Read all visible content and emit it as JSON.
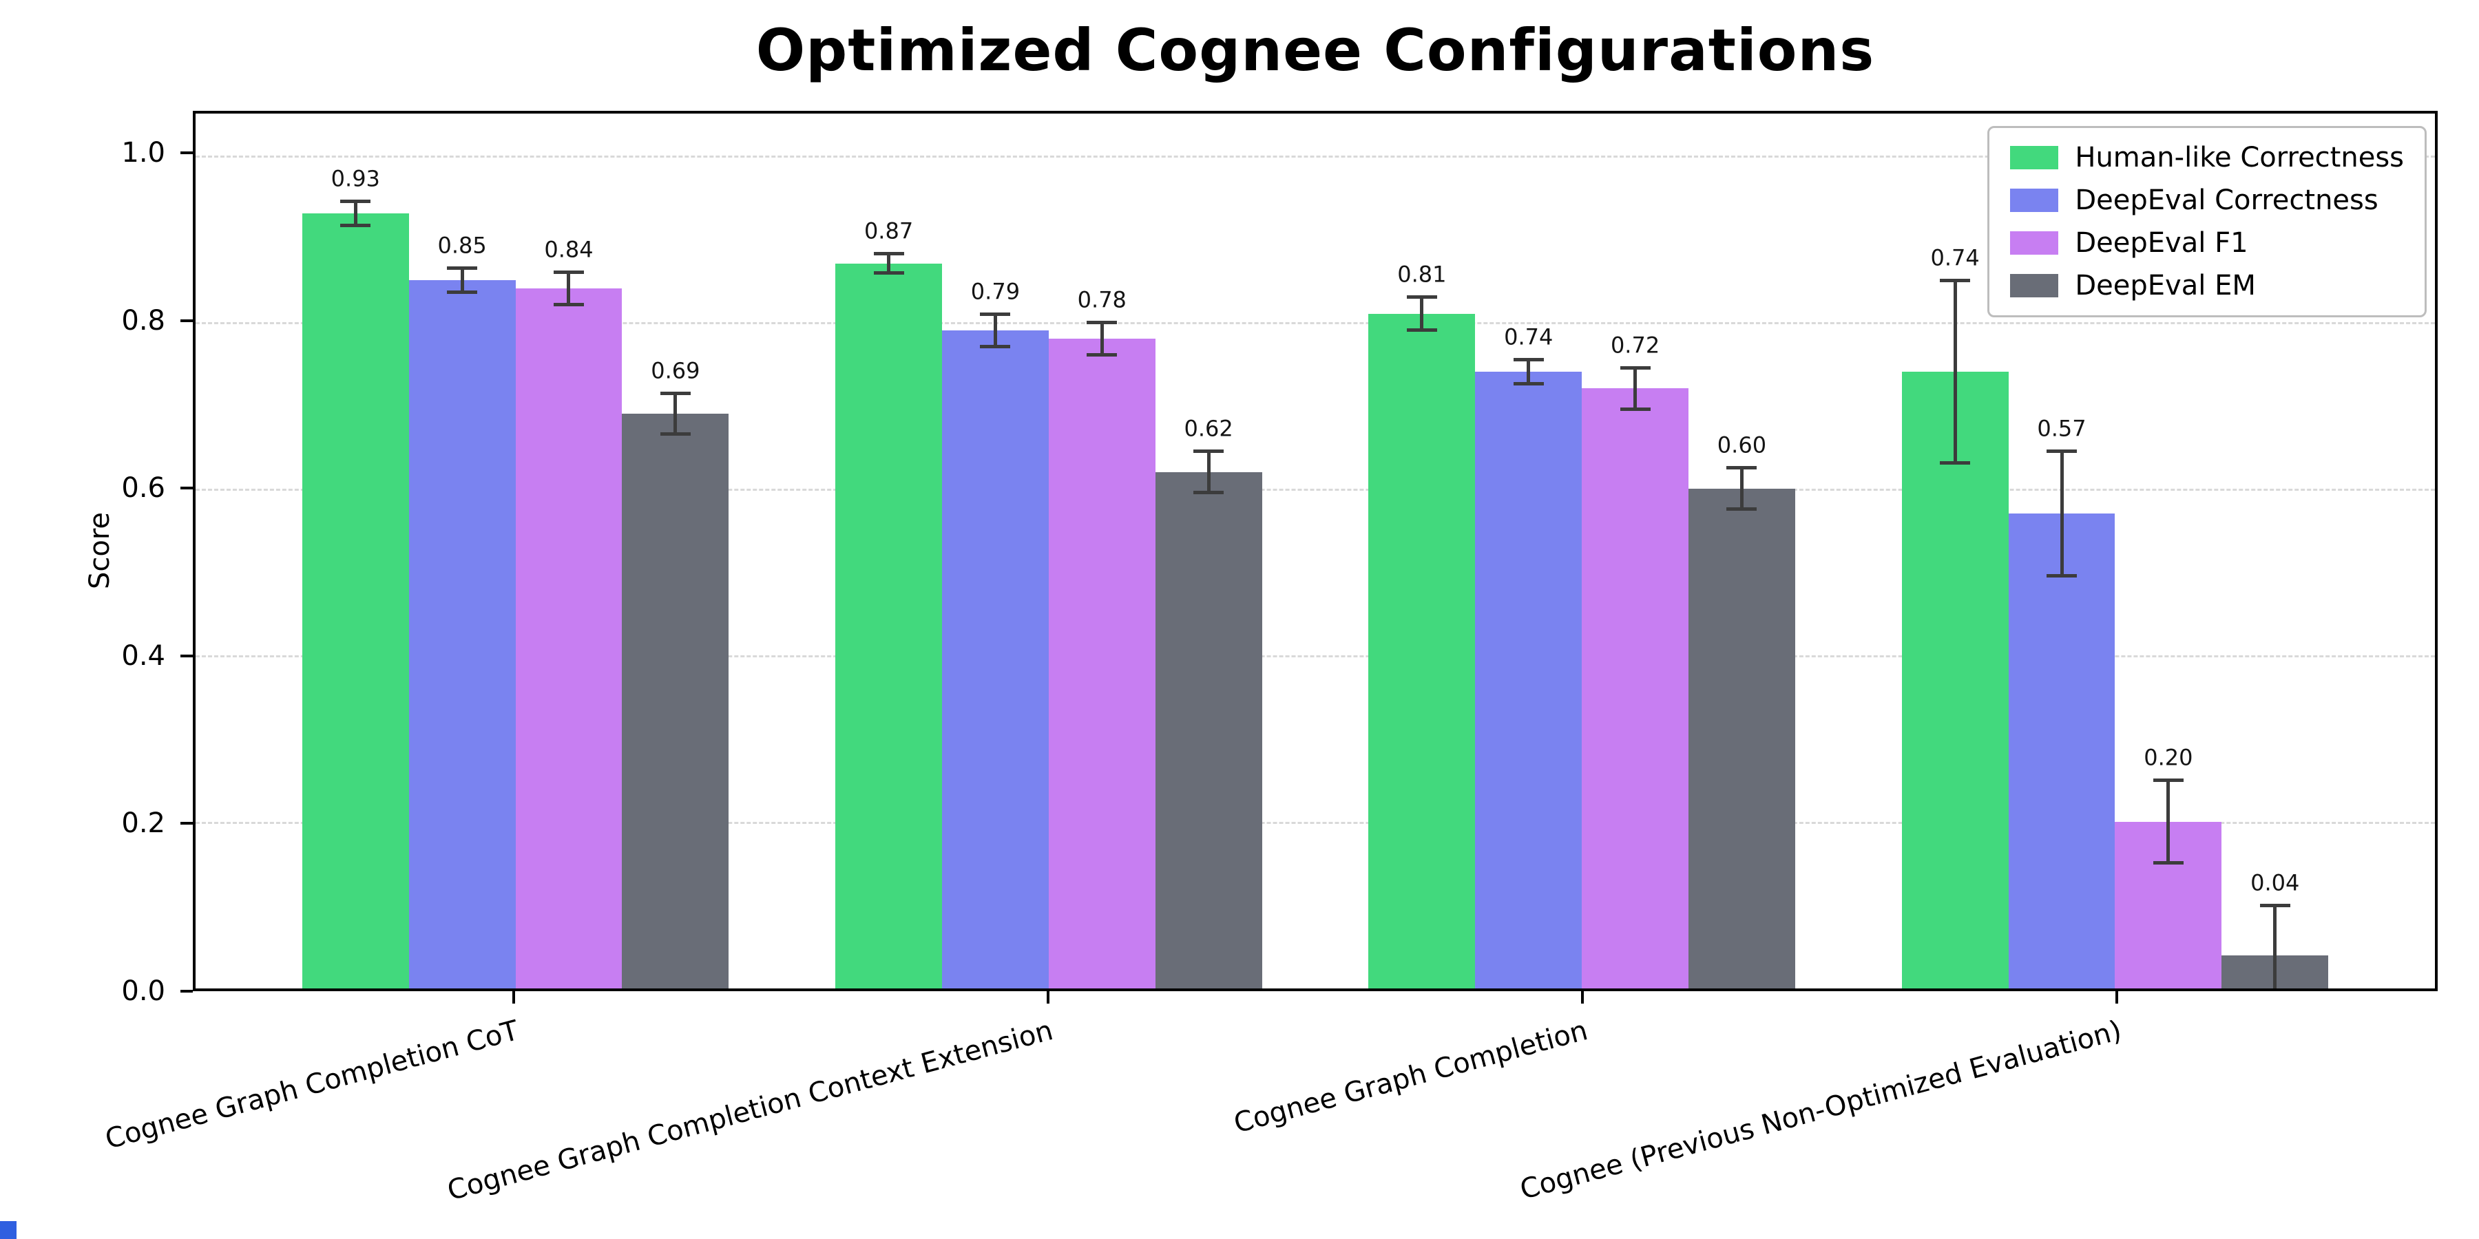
{
  "chart_data": {
    "type": "bar",
    "title": "Optimized Cognee Configurations",
    "xlabel": "",
    "ylabel": "Score",
    "ylim": [
      0,
      1.05
    ],
    "xlim": [
      -0.6,
      3.6
    ],
    "yticks": [
      0.0,
      0.2,
      0.4,
      0.6,
      0.8,
      1.0
    ],
    "grid": "horizontal-dashed",
    "legend_position": "upper right",
    "bar_width": 0.2,
    "value_label_format": "0.00",
    "categories": [
      "Cognee Graph Completion CoT",
      "Cognee Graph Completion Context Extension",
      "Cognee Graph Completion",
      "Cognee (Previous Non-Optimized Evaluation)"
    ],
    "series": [
      {
        "name": "Human-like Correctness",
        "color": "#42d97d",
        "values": [
          0.93,
          0.87,
          0.81,
          0.74
        ],
        "errors": [
          0.015,
          0.012,
          0.02,
          0.11
        ]
      },
      {
        "name": "DeepEval Correctness",
        "color": "#7a83f0",
        "values": [
          0.85,
          0.79,
          0.74,
          0.57
        ],
        "errors": [
          0.015,
          0.02,
          0.015,
          0.075
        ]
      },
      {
        "name": "DeepEval F1",
        "color": "#c77ef2",
        "values": [
          0.84,
          0.78,
          0.72,
          0.2
        ],
        "errors": [
          0.02,
          0.02,
          0.025,
          0.05
        ]
      },
      {
        "name": "DeepEval EM",
        "color": "#696d77",
        "values": [
          0.69,
          0.62,
          0.6,
          0.04
        ],
        "errors": [
          0.025,
          0.025,
          0.025,
          0.06
        ]
      }
    ],
    "error_bar_color": "#3c3c3c",
    "corner_mark_color": "#2f5fe0"
  }
}
